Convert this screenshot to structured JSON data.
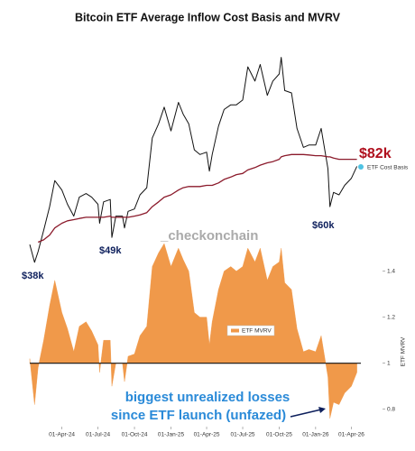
{
  "chart_data": [
    {
      "type": "line",
      "title": "Bitcoin ETF Average Inflow Cost Basis and MVRV",
      "watermark": "_checkonchain",
      "x": [
        "2024-01-11",
        "2024-01-23",
        "2024-02-01",
        "2024-02-15",
        "2024-03-01",
        "2024-03-14",
        "2024-04-01",
        "2024-04-15",
        "2024-05-01",
        "2024-05-15",
        "2024-06-01",
        "2024-06-15",
        "2024-07-01",
        "2024-07-05",
        "2024-07-15",
        "2024-08-01",
        "2024-08-05",
        "2024-08-15",
        "2024-09-01",
        "2024-09-06",
        "2024-09-15",
        "2024-10-01",
        "2024-10-15",
        "2024-11-01",
        "2024-11-15",
        "2024-12-01",
        "2024-12-15",
        "2025-01-01",
        "2025-01-20",
        "2025-02-01",
        "2025-02-15",
        "2025-03-01",
        "2025-03-15",
        "2025-04-01",
        "2025-04-08",
        "2025-04-15",
        "2025-05-01",
        "2025-05-15",
        "2025-06-01",
        "2025-06-15",
        "2025-07-01",
        "2025-07-14",
        "2025-08-01",
        "2025-08-14",
        "2025-09-01",
        "2025-09-15",
        "2025-10-01",
        "2025-10-06",
        "2025-10-15",
        "2025-11-01",
        "2025-11-15",
        "2025-12-01",
        "2025-12-15",
        "2026-01-01",
        "2026-01-15",
        "2026-02-01",
        "2026-02-06",
        "2026-02-15",
        "2026-03-01",
        "2026-03-15",
        "2026-04-01",
        "2026-04-15"
      ],
      "xlim": [
        "2024-01-11",
        "2026-04-25"
      ],
      "ylim": [
        35000,
        134000
      ],
      "series": [
        {
          "color": "#111111",
          "values": [
            46000,
            38500,
            43000,
            52000,
            62000,
            73000,
            69000,
            63000,
            58000,
            66000,
            67500,
            66000,
            63000,
            55000,
            64000,
            65000,
            49000,
            58000,
            58000,
            53000,
            60000,
            61000,
            67000,
            70000,
            91000,
            97000,
            104000,
            94000,
            106000,
            101000,
            97000,
            86000,
            84000,
            85000,
            77000,
            84000,
            96000,
            103000,
            105000,
            105000,
            107000,
            121000,
            115000,
            122000,
            109000,
            115000,
            118000,
            125000,
            111000,
            110000,
            95000,
            87000,
            88000,
            88000,
            95000,
            78000,
            62000,
            68000,
            67000,
            71000,
            74000,
            79000
          ]
        },
        {
          "name": "ETF Cost Basis",
          "color": "#8b1a2b",
          "values": [
            null,
            null,
            47000,
            48000,
            50000,
            53000,
            55000,
            56000,
            56500,
            57000,
            57500,
            57500,
            57500,
            57500,
            57500,
            58000,
            57500,
            57500,
            57500,
            57500,
            57500,
            58000,
            58500,
            59500,
            62000,
            64000,
            66000,
            67000,
            69000,
            70000,
            70500,
            70500,
            70500,
            71000,
            71000,
            71000,
            72000,
            73500,
            74500,
            75500,
            76000,
            77500,
            78500,
            79500,
            80500,
            81000,
            82000,
            83000,
            83500,
            84000,
            84000,
            84000,
            83800,
            83500,
            83500,
            83000,
            83000,
            82500,
            82000,
            82000,
            82000,
            82000
          ]
        }
      ],
      "annotations": [
        {
          "text": "$38k"
        },
        {
          "text": "$49k"
        },
        {
          "text": "$60k"
        },
        {
          "text": "$82k"
        }
      ]
    },
    {
      "type": "area",
      "x": [
        "2024-01-11",
        "2024-01-23",
        "2024-02-01",
        "2024-02-15",
        "2024-03-01",
        "2024-03-14",
        "2024-04-01",
        "2024-04-15",
        "2024-05-01",
        "2024-05-15",
        "2024-06-01",
        "2024-06-15",
        "2024-07-01",
        "2024-07-05",
        "2024-07-15",
        "2024-08-01",
        "2024-08-05",
        "2024-08-15",
        "2024-09-01",
        "2024-09-06",
        "2024-09-15",
        "2024-10-01",
        "2024-10-15",
        "2024-11-01",
        "2024-11-15",
        "2024-12-01",
        "2024-12-15",
        "2025-01-01",
        "2025-01-20",
        "2025-02-01",
        "2025-02-15",
        "2025-03-01",
        "2025-03-15",
        "2025-04-01",
        "2025-04-08",
        "2025-04-15",
        "2025-05-01",
        "2025-05-15",
        "2025-06-01",
        "2025-06-15",
        "2025-07-01",
        "2025-07-14",
        "2025-08-01",
        "2025-08-14",
        "2025-09-01",
        "2025-09-15",
        "2025-10-01",
        "2025-10-06",
        "2025-10-15",
        "2025-11-01",
        "2025-11-15",
        "2025-12-01",
        "2025-12-15",
        "2026-01-01",
        "2026-01-15",
        "2026-02-01",
        "2026-02-06",
        "2026-02-15",
        "2026-03-01",
        "2026-03-15",
        "2026-04-01",
        "2026-04-15"
      ],
      "xlim": [
        "2024-01-11",
        "2026-04-25"
      ],
      "xticks": [
        {
          "value": "2024-04-01",
          "label": "01-Apr-24"
        },
        {
          "value": "2024-07-01",
          "label": "01-Jul-24"
        },
        {
          "value": "2024-10-01",
          "label": "01-Oct-24"
        },
        {
          "value": "2025-01-01",
          "label": "01-Jan-25"
        },
        {
          "value": "2025-04-01",
          "label": "01-Apr-25"
        },
        {
          "value": "2025-07-01",
          "label": "01-Jul-25"
        },
        {
          "value": "2025-10-01",
          "label": "01-Oct-25"
        },
        {
          "value": "2026-01-01",
          "label": "01-Jan-26"
        },
        {
          "value": "2026-04-01",
          "label": "01-Apr-26"
        }
      ],
      "ylabel": "ETF MVRV",
      "ylim": [
        0.74,
        1.52
      ],
      "yticks": [
        0.8,
        1,
        1.2,
        1.4
      ],
      "baseline": 1,
      "series": [
        {
          "name": "ETF MVRV",
          "color": "#f0994a",
          "values": [
            1.02,
            0.82,
            0.98,
            1.1,
            1.25,
            1.36,
            1.22,
            1.15,
            1.05,
            1.16,
            1.18,
            1.14,
            1.08,
            0.96,
            1.1,
            1.1,
            0.9,
            1.0,
            1.0,
            0.92,
            1.03,
            1.04,
            1.12,
            1.16,
            1.42,
            1.48,
            1.52,
            1.42,
            1.5,
            1.45,
            1.4,
            1.22,
            1.2,
            1.2,
            1.08,
            1.18,
            1.32,
            1.4,
            1.42,
            1.4,
            1.42,
            1.5,
            1.44,
            1.5,
            1.36,
            1.42,
            1.44,
            1.5,
            1.35,
            1.32,
            1.15,
            1.05,
            1.06,
            1.05,
            1.12,
            0.94,
            0.76,
            0.83,
            0.82,
            0.87,
            0.9,
            0.96
          ]
        }
      ],
      "annotation": [
        "biggest unrealized losses",
        "since ETF launch (unfazed)"
      ]
    }
  ]
}
